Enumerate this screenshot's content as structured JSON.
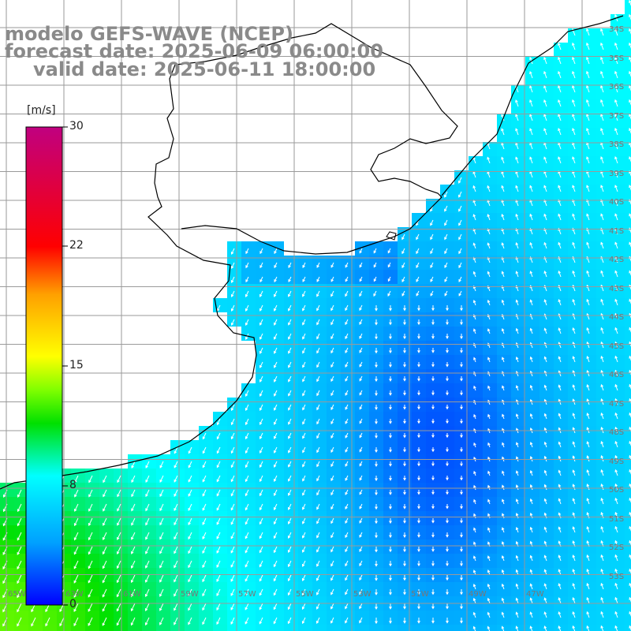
{
  "title": {
    "line1": "modelo GEFS-WAVE (NCEP)",
    "line2": "forecast date: 2025-06-09 06:00:00",
    "line3": "valid date: 2025-06-11 18:00:00"
  },
  "colorbar": {
    "unit": "[m/s]",
    "ticks": [
      "30",
      "22",
      "15",
      "8",
      "0"
    ],
    "min": 0,
    "max": 30,
    "stops": [
      "#0000ff",
      "#00a0ff",
      "#00ffff",
      "#00e000",
      "#80ff00",
      "#ffff00",
      "#ffa000",
      "#ff0000",
      "#c00080"
    ]
  },
  "map": {
    "background": "#ffffff",
    "coastline_color": "#000000",
    "grid_color": "#9a9a9a",
    "longitude_labels": [
      "65W",
      "63W",
      "61W",
      "59W",
      "57W",
      "55W",
      "53W",
      "51W",
      "49W",
      "47W"
    ],
    "latitude_labels": [
      "34S",
      "35S",
      "36S",
      "37S",
      "38S",
      "39S",
      "40S",
      "41S",
      "42S",
      "43S",
      "44S",
      "45S",
      "46S",
      "47S",
      "48S",
      "49S",
      "50S",
      "51S",
      "52S",
      "53S"
    ],
    "field": "wind speed (m/s) with direction arrows"
  }
}
